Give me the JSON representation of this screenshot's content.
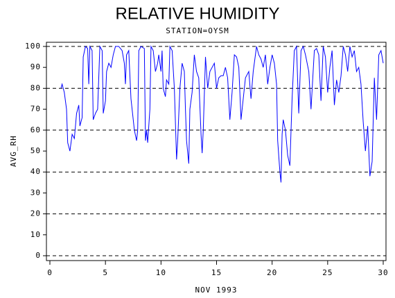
{
  "chart_data": {
    "type": "line",
    "title": "RELATIVE HUMIDITY",
    "subtitle": "STATION=OYSM",
    "x_label": "NOV 1993",
    "y_label": "AVG_RH",
    "grid": true,
    "xlim": [
      0,
      30
    ],
    "xticks": [
      0,
      5,
      10,
      15,
      20,
      25,
      30
    ],
    "ylim": [
      0,
      100
    ],
    "yticks": [
      0,
      10,
      20,
      30,
      40,
      50,
      60,
      70,
      80,
      90,
      100
    ],
    "grid_lines": [
      0,
      20,
      40,
      60,
      80,
      100
    ],
    "series": [
      {
        "name": "AVG_RH",
        "color": "#0000ff",
        "x": [
          1.0,
          1.1,
          1.3,
          1.5,
          1.6,
          1.8,
          2.0,
          2.2,
          2.4,
          2.6,
          2.7,
          2.9,
          3.0,
          3.2,
          3.4,
          3.5,
          3.6,
          3.8,
          3.9,
          4.1,
          4.3,
          4.5,
          4.7,
          4.8,
          5.0,
          5.1,
          5.3,
          5.5,
          5.7,
          5.9,
          6.2,
          6.5,
          6.7,
          6.8,
          6.9,
          7.1,
          7.3,
          7.6,
          7.8,
          7.9,
          8.0,
          8.2,
          8.5,
          8.6,
          8.7,
          8.8,
          9.0,
          9.1,
          9.3,
          9.5,
          9.7,
          9.8,
          10.0,
          10.1,
          10.2,
          10.4,
          10.5,
          10.7,
          10.8,
          11.0,
          11.2,
          11.4,
          11.5,
          11.7,
          11.9,
          12.1,
          12.2,
          12.3,
          12.5,
          12.6,
          12.8,
          13.0,
          13.2,
          13.4,
          13.6,
          13.7,
          13.8,
          14.0,
          14.2,
          14.4,
          14.6,
          14.8,
          15.0,
          15.2,
          15.4,
          15.6,
          15.8,
          16.0,
          16.2,
          16.4,
          16.6,
          16.8,
          17.0,
          17.2,
          17.4,
          17.6,
          17.9,
          18.1,
          18.3,
          18.6,
          18.8,
          19.0,
          19.2,
          19.4,
          19.6,
          19.8,
          20.0,
          20.2,
          20.4,
          20.5,
          20.7,
          20.8,
          20.9,
          21.0,
          21.2,
          21.4,
          21.6,
          21.8,
          22.0,
          22.2,
          22.4,
          22.6,
          22.8,
          23.0,
          23.3,
          23.5,
          23.8,
          24.0,
          24.2,
          24.4,
          24.6,
          24.8,
          25.0,
          25.2,
          25.4,
          25.6,
          25.8,
          26.0,
          26.2,
          26.4,
          26.6,
          26.8,
          27.0,
          27.2,
          27.4,
          27.6,
          27.8,
          28.0,
          28.2,
          28.4,
          28.6,
          28.8,
          29.0,
          29.2,
          29.4,
          29.6,
          29.8,
          30.0
        ],
        "values": [
          80,
          82,
          78,
          70,
          54,
          50,
          58,
          56,
          68,
          72,
          62,
          66,
          95,
          100,
          99,
          82,
          100,
          98,
          65,
          68,
          70,
          100,
          98,
          68,
          74,
          88,
          92,
          90,
          96,
          100,
          100,
          98,
          92,
          82,
          96,
          98,
          75,
          60,
          55,
          60,
          98,
          100,
          99,
          55,
          60,
          54,
          70,
          100,
          98,
          88,
          92,
          96,
          88,
          98,
          80,
          76,
          84,
          82,
          100,
          98,
          80,
          46,
          55,
          80,
          92,
          88,
          70,
          55,
          44,
          70,
          78,
          96,
          88,
          85,
          58,
          49,
          60,
          95,
          80,
          88,
          90,
          92,
          80,
          85,
          86,
          86,
          90,
          85,
          65,
          78,
          96,
          95,
          90,
          65,
          75,
          85,
          88,
          75,
          88,
          100,
          96,
          94,
          90,
          96,
          82,
          90,
          96,
          92,
          82,
          55,
          40,
          35,
          58,
          65,
          60,
          48,
          43,
          75,
          98,
          100,
          68,
          98,
          100,
          96,
          88,
          70,
          98,
          99,
          96,
          74,
          100,
          95,
          78,
          90,
          98,
          72,
          84,
          78,
          86,
          100,
          96,
          88,
          100,
          95,
          98,
          88,
          90,
          82,
          64,
          50,
          62,
          38,
          45,
          85,
          65,
          96,
          98,
          92
        ]
      }
    ]
  }
}
